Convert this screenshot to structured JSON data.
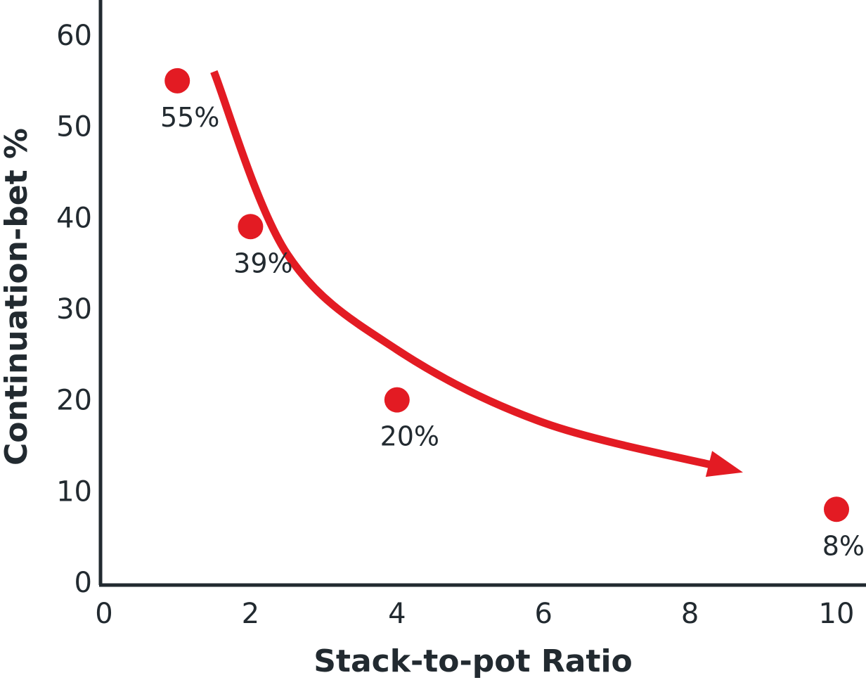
{
  "chart_data": {
    "type": "scatter",
    "title": "",
    "xlabel": "Stack-to-pot Ratio",
    "ylabel": "Continuation-bet %",
    "xlim": [
      0,
      10
    ],
    "ylim": [
      0,
      60
    ],
    "x_ticks": [
      0,
      2,
      4,
      6,
      8,
      10
    ],
    "y_ticks": [
      0,
      10,
      20,
      30,
      40,
      50,
      60
    ],
    "x_tick_labels": [
      "0",
      "2",
      "4",
      "6",
      "8",
      "10"
    ],
    "y_tick_labels": [
      "0",
      "10",
      "20",
      "30",
      "40",
      "50",
      "60"
    ],
    "grid": false,
    "legend": "none",
    "series": [
      {
        "points": [
          {
            "x": 1,
            "y": 55,
            "label": "55%"
          },
          {
            "x": 2,
            "y": 39,
            "label": "39%"
          },
          {
            "x": 4,
            "y": 20,
            "label": "20%"
          },
          {
            "x": 10,
            "y": 8,
            "label": "8%"
          }
        ]
      }
    ],
    "annotations": [
      {
        "type": "trend-arrow",
        "description": "decreasing curved arrow",
        "points": [
          [
            1.5,
            56
          ],
          [
            2.5,
            36
          ],
          [
            4,
            25.5
          ],
          [
            6,
            17.5
          ],
          [
            8.5,
            12.5
          ]
        ]
      }
    ],
    "colors": {
      "marker": "#e31b23",
      "arrow": "#e31b23",
      "axis": "#222a30",
      "text": "#222a30"
    }
  }
}
